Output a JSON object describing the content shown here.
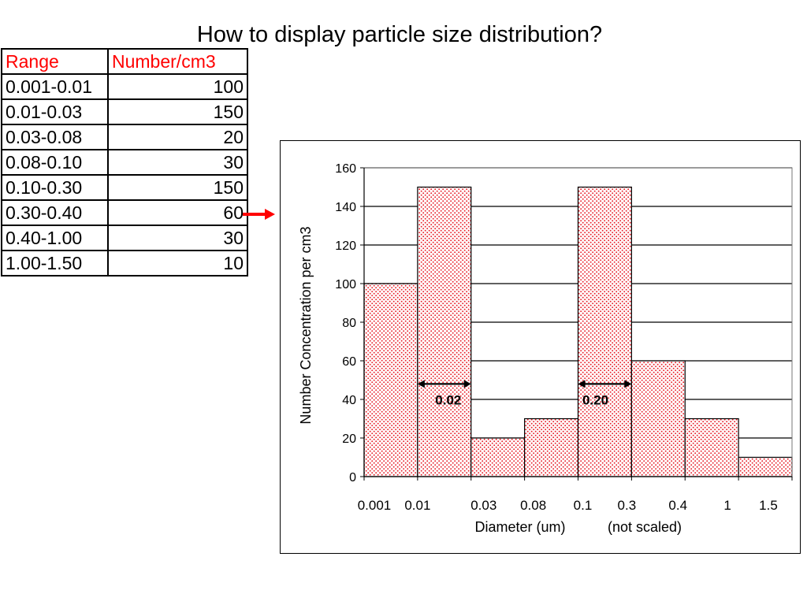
{
  "title": "How to display particle size distribution?",
  "table": {
    "headers": [
      "Range",
      "Number/cm3"
    ],
    "rows": [
      [
        "0.001-0.01",
        "100"
      ],
      [
        "0.01-0.03",
        "150"
      ],
      [
        "0.03-0.08",
        "20"
      ],
      [
        "0.08-0.10",
        "30"
      ],
      [
        "0.10-0.30",
        "150"
      ],
      [
        "0.30-0.40",
        "60"
      ],
      [
        "0.40-1.00",
        "30"
      ],
      [
        "1.00-1.50",
        "10"
      ]
    ],
    "header_color": "#ff0000"
  },
  "arrow_color": "#ff0000",
  "chart_data": {
    "type": "bar",
    "categories": [
      "0.001-0.01",
      "0.01-0.03",
      "0.03-0.08",
      "0.08-0.10",
      "0.10-0.30",
      "0.30-0.40",
      "0.40-1.00",
      "1.00-1.50"
    ],
    "values": [
      100,
      150,
      20,
      30,
      150,
      60,
      30,
      10
    ],
    "x_tick_labels": [
      "0.001",
      "0.01",
      "0.03",
      "0.08",
      "0.1",
      "0.3",
      "0.4",
      "1",
      "1.5"
    ],
    "y_ticks": [
      0,
      20,
      40,
      60,
      80,
      100,
      120,
      140,
      160
    ],
    "ylim": [
      0,
      160
    ],
    "ylabel": "Number Concentration per cm3",
    "xlabel": "Diameter (um)",
    "xlabel_note": "(not scaled)",
    "grid": true,
    "bar_fill": "#ffffff",
    "bar_dot_color": "#e8202a",
    "annotations": [
      {
        "text": "0.02",
        "bar_index": 1,
        "y": 48
      },
      {
        "text": "0.20",
        "bar_index": 4,
        "y": 48
      }
    ]
  }
}
